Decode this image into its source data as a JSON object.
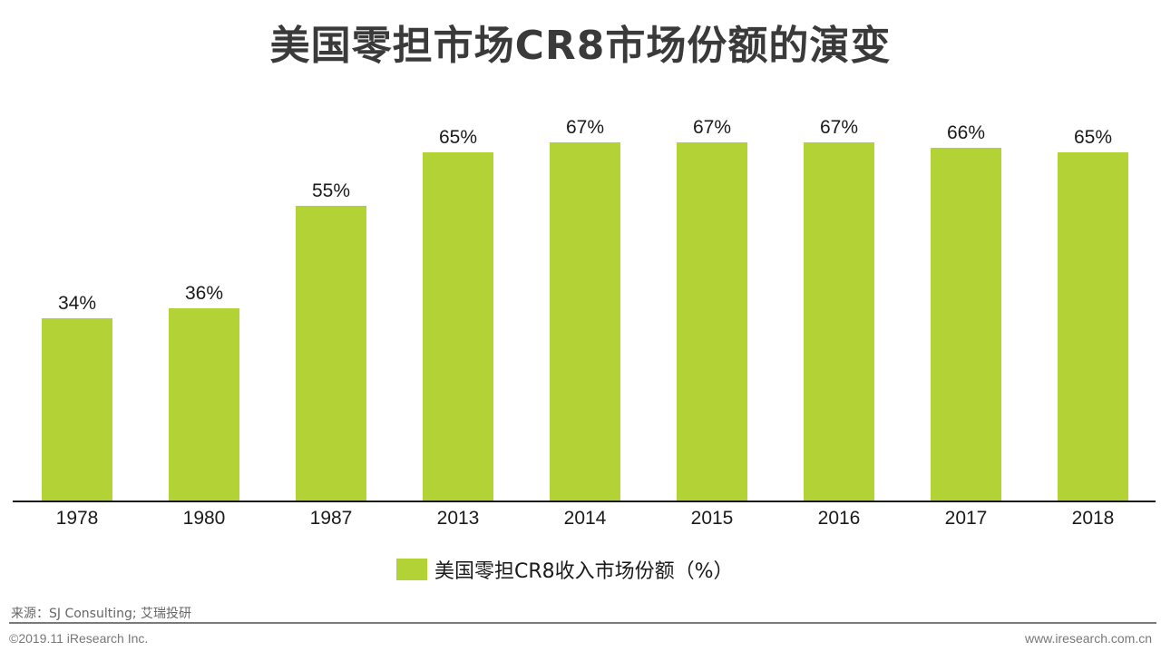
{
  "title": "美国零担市场CR8市场份额的演变",
  "colors": {
    "bar": "#b2d235",
    "axis": "#1a1a1a",
    "title": "#3a3a3a"
  },
  "chart_data": {
    "type": "bar",
    "title": "美国零担市场CR8市场份额的演变",
    "categories": [
      "1978",
      "1980",
      "1987",
      "2013",
      "2014",
      "2015",
      "2016",
      "2017",
      "2018"
    ],
    "series": [
      {
        "name": "美国零担CR8收入市场份额（%）",
        "values": [
          34,
          36,
          55,
          65,
          67,
          67,
          67,
          66,
          65
        ],
        "color": "#b2d235"
      }
    ],
    "data_labels": [
      "34%",
      "36%",
      "55%",
      "65%",
      "67%",
      "67%",
      "67%",
      "66%",
      "65%"
    ],
    "xlabel": "",
    "ylabel": "",
    "ylim": [
      0,
      70
    ],
    "grid": false,
    "legend_position": "bottom"
  },
  "legend": {
    "label": "美国零担CR8收入市场份额（%）"
  },
  "footer": {
    "source": "来源：SJ Consulting; 艾瑞投研",
    "copyright": "©2019.11 iResearch Inc.",
    "website": "www.iresearch.com.cn"
  }
}
